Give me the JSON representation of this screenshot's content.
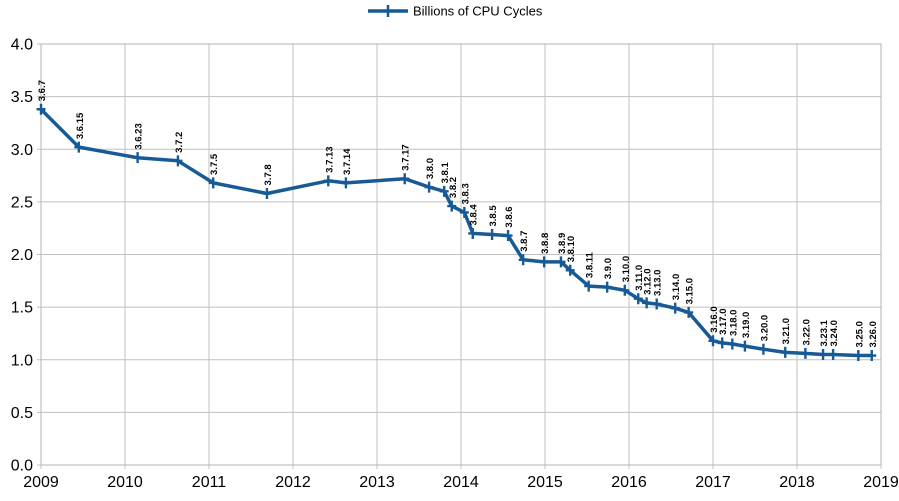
{
  "legend": {
    "label": "Billions of CPU Cycles"
  },
  "colors": {
    "series": "#175a96",
    "grid": "#c0c0c0",
    "border": "#b3b3b3",
    "text": "#000000",
    "background": "#ffffff"
  },
  "chart_data": {
    "type": "line",
    "title": "",
    "xlabel": "",
    "ylabel": "",
    "legend_entries": [
      "Billions of CPU Cycles"
    ],
    "legend_position": "top-center",
    "grid": true,
    "marker": "plus",
    "x_axis": {
      "min": 2009,
      "max": 2019,
      "ticks": [
        2009,
        2010,
        2011,
        2012,
        2013,
        2014,
        2015,
        2016,
        2017,
        2018,
        2019
      ]
    },
    "y_axis": {
      "min": 0.0,
      "max": 4.0,
      "ticks": [
        0.0,
        0.5,
        1.0,
        1.5,
        2.0,
        2.5,
        3.0,
        3.5,
        4.0
      ],
      "decimals": 1
    },
    "series": [
      {
        "name": "Billions of CPU Cycles",
        "points": [
          {
            "label": "3.6.7",
            "x": 2009.0,
            "y": 3.38
          },
          {
            "label": "3.6.15",
            "x": 2009.45,
            "y": 3.02
          },
          {
            "label": "3.6.23",
            "x": 2010.15,
            "y": 2.92
          },
          {
            "label": "3.7.2",
            "x": 2010.63,
            "y": 2.89
          },
          {
            "label": "3.7.5",
            "x": 2011.05,
            "y": 2.68
          },
          {
            "label": "3.7.8",
            "x": 2011.69,
            "y": 2.58
          },
          {
            "label": "3.7.13",
            "x": 2012.42,
            "y": 2.7
          },
          {
            "label": "3.7.14",
            "x": 2012.63,
            "y": 2.68
          },
          {
            "label": "3.7.17",
            "x": 2013.33,
            "y": 2.72
          },
          {
            "label": "3.8.0",
            "x": 2013.62,
            "y": 2.64
          },
          {
            "label": "3.8.1",
            "x": 2013.8,
            "y": 2.6
          },
          {
            "label": "3.8.2",
            "x": 2013.89,
            "y": 2.46
          },
          {
            "label": "3.8.3",
            "x": 2014.04,
            "y": 2.4
          },
          {
            "label": "3.8.4",
            "x": 2014.14,
            "y": 2.2
          },
          {
            "label": "3.8.5",
            "x": 2014.37,
            "y": 2.19
          },
          {
            "label": "3.8.6",
            "x": 2014.56,
            "y": 2.18
          },
          {
            "label": "3.8.7",
            "x": 2014.74,
            "y": 1.95
          },
          {
            "label": "3.8.8",
            "x": 2014.99,
            "y": 1.93
          },
          {
            "label": "3.8.9",
            "x": 2015.19,
            "y": 1.93
          },
          {
            "label": "3.8.10",
            "x": 2015.3,
            "y": 1.85
          },
          {
            "label": "3.8.11",
            "x": 2015.52,
            "y": 1.7
          },
          {
            "label": "3.9.0",
            "x": 2015.74,
            "y": 1.69
          },
          {
            "label": "3.10.0",
            "x": 2015.95,
            "y": 1.66
          },
          {
            "label": "3.11.0",
            "x": 2016.11,
            "y": 1.58
          },
          {
            "label": "3.12.0",
            "x": 2016.21,
            "y": 1.54
          },
          {
            "label": "3.13.0",
            "x": 2016.33,
            "y": 1.53
          },
          {
            "label": "3.14.0",
            "x": 2016.55,
            "y": 1.49
          },
          {
            "label": "3.15.0",
            "x": 2016.71,
            "y": 1.45
          },
          {
            "label": "3.16.0",
            "x": 2017.0,
            "y": 1.18
          },
          {
            "label": "3.17.0",
            "x": 2017.11,
            "y": 1.16
          },
          {
            "label": "3.18.0",
            "x": 2017.23,
            "y": 1.15
          },
          {
            "label": "3.19.0",
            "x": 2017.38,
            "y": 1.13
          },
          {
            "label": "3.20.0",
            "x": 2017.6,
            "y": 1.1
          },
          {
            "label": "3.21.0",
            "x": 2017.86,
            "y": 1.07
          },
          {
            "label": "3.22.0",
            "x": 2018.1,
            "y": 1.06
          },
          {
            "label": "3.23.1",
            "x": 2018.31,
            "y": 1.05
          },
          {
            "label": "3.24.0",
            "x": 2018.43,
            "y": 1.05
          },
          {
            "label": "3.25.0",
            "x": 2018.73,
            "y": 1.04
          },
          {
            "label": "3.26.0",
            "x": 2018.89,
            "y": 1.04
          }
        ]
      }
    ]
  }
}
